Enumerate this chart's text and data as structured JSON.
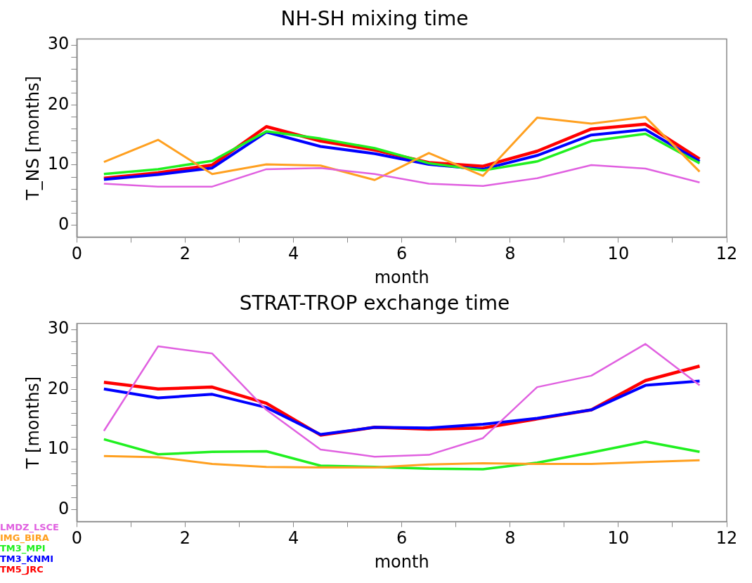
{
  "chart_data": [
    {
      "type": "line",
      "title": "NH-SH mixing time",
      "xlabel": "month",
      "ylabel": "T_NS [months]",
      "x": [
        0.5,
        1.5,
        2.5,
        3.5,
        4.5,
        5.5,
        6.5,
        7.5,
        8.5,
        9.5,
        10.5,
        11.5
      ],
      "xlim": [
        0,
        12
      ],
      "xticks": [
        0,
        {
          "value": 1,
          "label": null
        },
        2,
        {
          "value": 3,
          "label": null
        },
        4,
        {
          "value": 5,
          "label": null
        },
        6,
        {
          "value": 7,
          "label": null
        },
        8,
        {
          "value": 9,
          "label": null
        },
        10,
        {
          "value": 11,
          "label": null
        },
        12
      ],
      "ylim": [
        -2,
        31
      ],
      "yticks": [
        0,
        {
          "value": 2,
          "label": null
        },
        {
          "value": 4,
          "label": null
        },
        {
          "value": 6,
          "label": null
        },
        {
          "value": 8,
          "label": null
        },
        10,
        {
          "value": 12,
          "label": null
        },
        {
          "value": 14,
          "label": null
        },
        {
          "value": 16,
          "label": null
        },
        {
          "value": 18,
          "label": null
        },
        20,
        {
          "value": 22,
          "label": null
        },
        {
          "value": 24,
          "label": null
        },
        {
          "value": 26,
          "label": null
        },
        {
          "value": 28,
          "label": null
        },
        30
      ],
      "grid": false,
      "series": [
        {
          "color": "#e060e0",
          "values": [
            6.9,
            6.4,
            6.4,
            9.3,
            9.5,
            8.5,
            6.9,
            6.5,
            7.8,
            10,
            9.4,
            7.1
          ]
        },
        {
          "color": "#ffa020",
          "values": [
            10.5,
            14.2,
            8.5,
            10.1,
            9.9,
            7.5,
            12,
            8.2,
            17.9,
            16.9,
            18,
            8.9
          ]
        },
        {
          "color": "#20f020",
          "values": [
            8.5,
            9.3,
            10.7,
            15.6,
            14.4,
            12.8,
            10.3,
            9.1,
            10.6,
            14,
            15.2,
            10.3
          ]
        },
        {
          "color": "#0000ff",
          "values": [
            7.6,
            8.4,
            9.5,
            15.5,
            13.1,
            11.9,
            10.1,
            9.3,
            11.6,
            15,
            15.9,
            10.6
          ]
        },
        {
          "color": "#ff0000",
          "values": [
            7.8,
            8.7,
            10,
            16.4,
            14,
            12.5,
            10.4,
            9.8,
            12.3,
            16,
            16.8,
            11
          ]
        }
      ]
    },
    {
      "type": "line",
      "title": "STRAT-TROP exchange time",
      "xlabel": "month",
      "ylabel": "T [months]",
      "x": [
        0.5,
        1.5,
        2.5,
        3.5,
        4.5,
        5.5,
        6.5,
        7.5,
        8.5,
        9.5,
        10.5,
        11.5
      ],
      "xlim": [
        0,
        12
      ],
      "xticks": [
        0,
        {
          "value": 1,
          "label": null
        },
        2,
        {
          "value": 3,
          "label": null
        },
        4,
        {
          "value": 5,
          "label": null
        },
        6,
        {
          "value": 7,
          "label": null
        },
        8,
        {
          "value": 9,
          "label": null
        },
        10,
        {
          "value": 11,
          "label": null
        },
        12
      ],
      "ylim": [
        -2,
        31
      ],
      "yticks": [
        0,
        {
          "value": 2,
          "label": null
        },
        {
          "value": 4,
          "label": null
        },
        {
          "value": 6,
          "label": null
        },
        {
          "value": 8,
          "label": null
        },
        10,
        {
          "value": 12,
          "label": null
        },
        {
          "value": 14,
          "label": null
        },
        {
          "value": 16,
          "label": null
        },
        {
          "value": 18,
          "label": null
        },
        20,
        {
          "value": 22,
          "label": null
        },
        {
          "value": 24,
          "label": null
        },
        {
          "value": 26,
          "label": null
        },
        {
          "value": 28,
          "label": null
        },
        30
      ],
      "grid": false,
      "legend": "bottom left",
      "series": [
        {
          "name": "LMDZ_LSCE",
          "color": "#e060e0",
          "values": [
            13.1,
            27.2,
            26.0,
            16.6,
            10.0,
            8.8,
            9.1,
            11.9,
            20.4,
            22.3,
            27.6,
            20.7
          ]
        },
        {
          "name": "IMG_BIRA",
          "color": "#ffa020",
          "values": [
            8.9,
            8.7,
            7.6,
            7.1,
            7.0,
            7.0,
            7.5,
            7.7,
            7.6,
            7.6,
            7.9,
            8.2
          ]
        },
        {
          "name": "TM3_MPI",
          "color": "#20f020",
          "values": [
            11.7,
            9.2,
            9.6,
            9.7,
            7.3,
            7.1,
            6.8,
            6.7,
            7.8,
            9.5,
            11.3,
            9.6
          ]
        },
        {
          "name": "TM3_KNMI",
          "color": "#0000ff",
          "values": [
            20.1,
            18.6,
            19.2,
            17.0,
            12.5,
            13.7,
            13.6,
            14.2,
            15.2,
            16.6,
            20.7,
            21.4
          ]
        },
        {
          "name": "TM5_JRC",
          "color": "#ff0000",
          "values": [
            21.2,
            20.1,
            20.4,
            17.7,
            12.4,
            13.7,
            13.4,
            13.6,
            15.1,
            16.6,
            21.5,
            23.9
          ]
        }
      ]
    }
  ]
}
